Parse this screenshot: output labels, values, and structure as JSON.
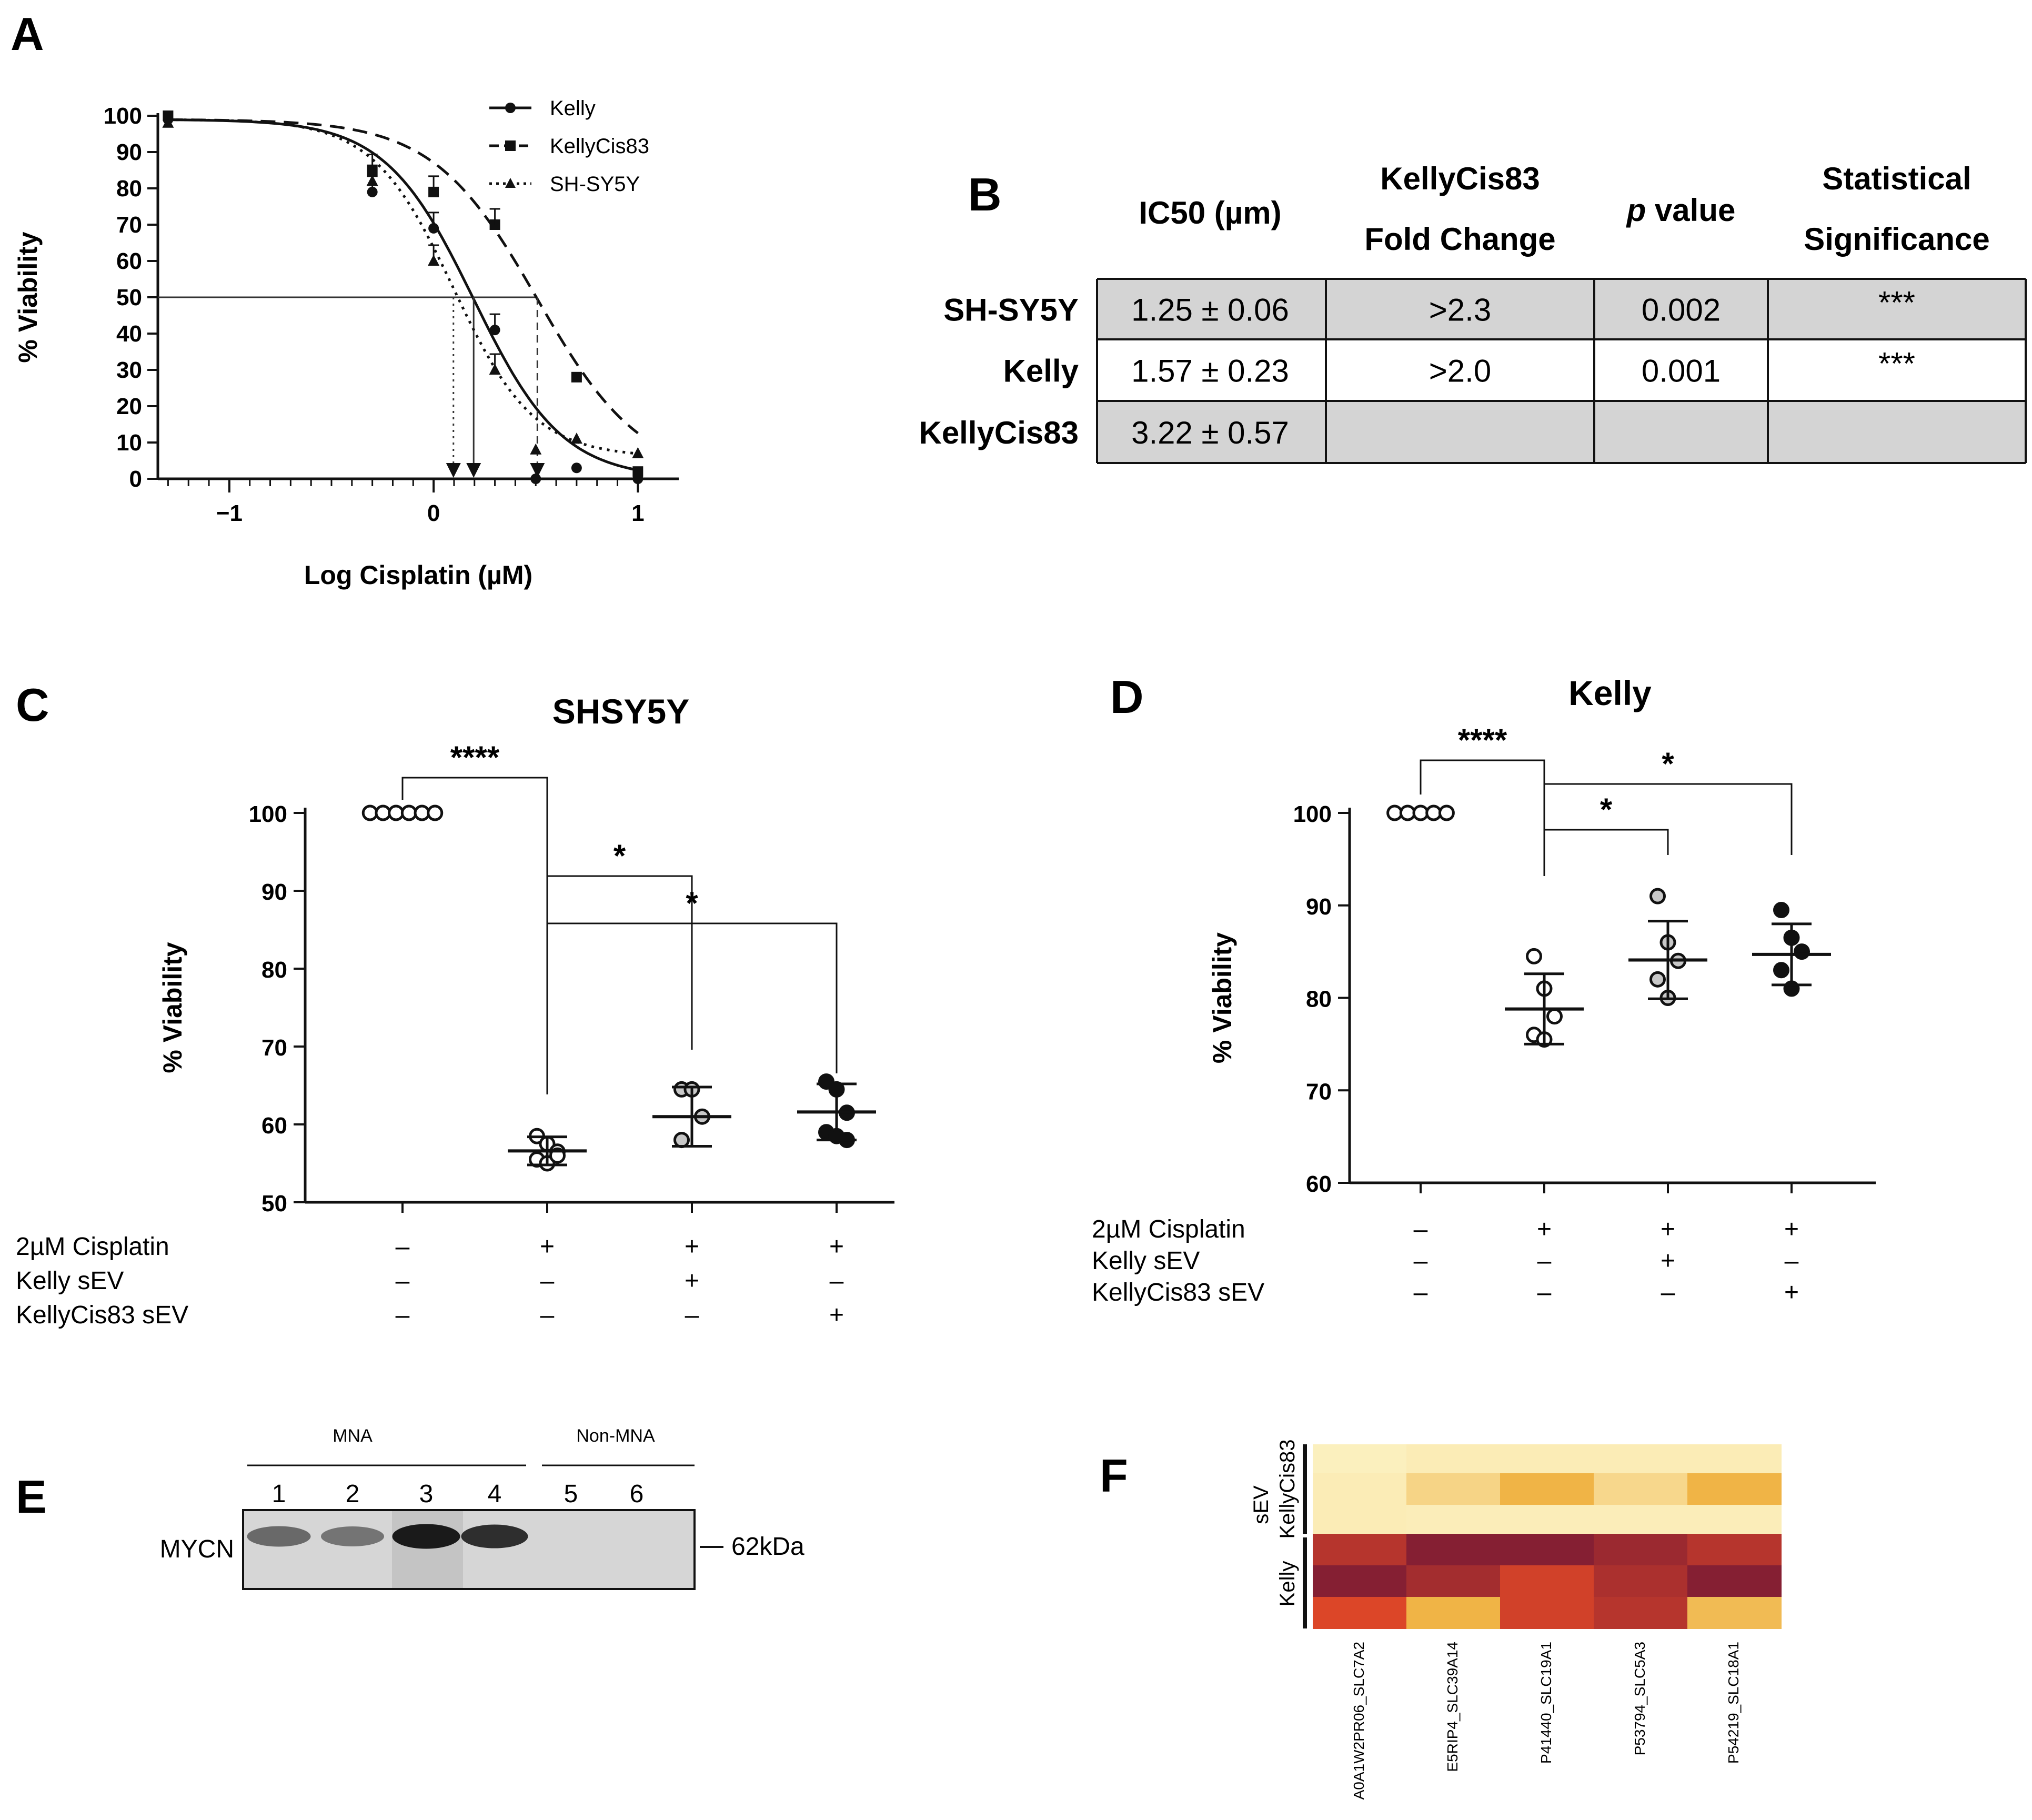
{
  "panels": {
    "a": {
      "letter": "A"
    },
    "b": {
      "letter": "B"
    },
    "c": {
      "letter": "C"
    },
    "d": {
      "letter": "D"
    },
    "e": {
      "letter": "E"
    },
    "f": {
      "letter": "F"
    }
  },
  "chart_data": [
    {
      "id": "A",
      "type": "line",
      "title": "",
      "xlabel": "Log Cisplatin (µM)",
      "ylabel": "% Viability",
      "xlim": [
        -1.35,
        1.2
      ],
      "ylim": [
        0,
        100
      ],
      "x_ticks": [
        "−1",
        "0",
        "1"
      ],
      "y_ticks": [
        "0",
        "10",
        "20",
        "30",
        "40",
        "50",
        "60",
        "70",
        "80",
        "90",
        "100"
      ],
      "reference_line_y": 50,
      "series": [
        {
          "name": "Kelly",
          "marker": "circle",
          "line": "solid",
          "x": [
            -1.3,
            -0.3,
            0.0,
            0.3,
            0.5,
            0.7,
            1.0
          ],
          "y": [
            99,
            79,
            69,
            41,
            0,
            3,
            0
          ],
          "logIC50": 0.196
        },
        {
          "name": "KellyCis83",
          "marker": "square",
          "line": "dashed",
          "x": [
            -1.3,
            -0.3,
            0.0,
            0.3,
            0.7,
            1.0
          ],
          "y": [
            100,
            85,
            79,
            70,
            28,
            2
          ],
          "logIC50": 0.508
        },
        {
          "name": "SH-SY5Y",
          "marker": "triangle",
          "line": "dotted",
          "x": [
            -1.3,
            -0.3,
            0.0,
            0.3,
            0.5,
            0.7,
            1.0
          ],
          "y": [
            98,
            82,
            60,
            30,
            8,
            11,
            7
          ],
          "logIC50": 0.097
        }
      ]
    },
    {
      "id": "B",
      "type": "table",
      "headers": [
        "IC50 (µm)",
        "KellyCis83",
        "Fold Change",
        "p",
        " value",
        "Statistical",
        "Significance"
      ],
      "rows": [
        {
          "label": "SH-SY5Y",
          "cells": [
            "1.25 ± 0.06",
            ">2.3",
            "0.002",
            "***"
          ],
          "shaded": true
        },
        {
          "label": "Kelly",
          "cells": [
            "1.57 ± 0.23",
            ">2.0",
            "0.001",
            "***"
          ],
          "shaded": false
        },
        {
          "label": "KellyCis83",
          "cells": [
            "3.22 ± 0.57",
            "",
            "",
            ""
          ],
          "shaded": true
        }
      ]
    },
    {
      "id": "C",
      "type": "scatter",
      "title": "SHSY5Y",
      "ylabel": "% Viability",
      "ylim": [
        50,
        100
      ],
      "y_ticks": [
        "50",
        "60",
        "70",
        "80",
        "90",
        "100"
      ],
      "groups": [
        {
          "fill": "open",
          "points": [
            100,
            100,
            100,
            100,
            100,
            100
          ],
          "mean": 100,
          "sd": 0
        },
        {
          "fill": "open",
          "points": [
            58.5,
            57.5,
            56.5,
            55.5,
            55,
            56
          ],
          "mean": 56.6,
          "sd": 1.8
        },
        {
          "fill": "grey",
          "points": [
            64.5,
            64.5,
            61,
            58
          ],
          "mean": 61,
          "sd": 3.8
        },
        {
          "fill": "black",
          "points": [
            65.5,
            64.5,
            61.5,
            59,
            58.5,
            58
          ],
          "mean": 61.6,
          "sd": 3.6
        }
      ],
      "significance": [
        {
          "from": 0,
          "to": 1,
          "label": "****"
        },
        {
          "from": 1,
          "to": 2,
          "label": "*"
        },
        {
          "from": 1,
          "to": 3,
          "label": "*"
        }
      ],
      "conditions": [
        {
          "label": "2µM Cisplatin",
          "values": [
            "–",
            "+",
            "+",
            "+"
          ]
        },
        {
          "label": "Kelly sEV",
          "values": [
            "–",
            "–",
            "+",
            "–"
          ]
        },
        {
          "label": "KellyCis83 sEV",
          "values": [
            "–",
            "–",
            "–",
            "+"
          ]
        }
      ]
    },
    {
      "id": "D",
      "type": "scatter",
      "title": "Kelly",
      "ylabel": "% Viability",
      "ylim": [
        60,
        100
      ],
      "y_ticks": [
        "60",
        "70",
        "80",
        "90",
        "100"
      ],
      "groups": [
        {
          "fill": "open",
          "points": [
            100,
            100,
            100,
            100,
            100
          ],
          "mean": 100,
          "sd": 0
        },
        {
          "fill": "open",
          "points": [
            84.5,
            81,
            78,
            76,
            75.5
          ],
          "mean": 78.8,
          "sd": 3.8
        },
        {
          "fill": "grey",
          "points": [
            91,
            86,
            84,
            82,
            80
          ],
          "mean": 84.1,
          "sd": 4.2
        },
        {
          "fill": "black",
          "points": [
            89.5,
            86.5,
            85,
            83,
            81
          ],
          "mean": 84.7,
          "sd": 3.3
        }
      ],
      "significance": [
        {
          "from": 0,
          "to": 1,
          "label": "****"
        },
        {
          "from": 1,
          "to": 2,
          "label": "*"
        },
        {
          "from": 1,
          "to": 3,
          "label": "*"
        }
      ],
      "conditions": [
        {
          "label": "2µM Cisplatin",
          "values": [
            "–",
            "+",
            "+",
            "+"
          ]
        },
        {
          "label": "Kelly sEV",
          "values": [
            "–",
            "–",
            "+",
            "–"
          ]
        },
        {
          "label": "KellyCis83 sEV",
          "values": [
            "–",
            "–",
            "–",
            "+"
          ]
        }
      ]
    },
    {
      "id": "E",
      "type": "table",
      "protein_label": "MYCN",
      "size_marker": "62kDa",
      "group_labels": [
        "MNA",
        "Non-MNA"
      ],
      "lanes": [
        {
          "label": "1",
          "intensity": 0.55
        },
        {
          "label": "2",
          "intensity": 0.5
        },
        {
          "label": "3",
          "intensity": 0.95
        },
        {
          "label": "4",
          "intensity": 0.85
        },
        {
          "label": "5",
          "intensity": 0.0
        },
        {
          "label": "6",
          "intensity": 0.0
        }
      ]
    },
    {
      "id": "F",
      "type": "heatmap",
      "columns": [
        "A0A1W2PR06_SLC7A2",
        "E5RIP4_SLC39A14",
        "P41440_SLC19A1",
        "P53794_SLC5A3",
        "P54219_SLC18A1"
      ],
      "row_groups": [
        {
          "label": "KellyCis83",
          "rows": 3
        },
        {
          "label": "Kelly",
          "rows": 3
        }
      ],
      "side_label": "sEV",
      "values": [
        [
          0.02,
          0.05,
          0.05,
          0.05,
          0.05
        ],
        [
          0.05,
          0.22,
          0.45,
          0.2,
          0.45
        ],
        [
          0.05,
          0.04,
          0.04,
          0.04,
          0.04
        ],
        [
          0.85,
          0.98,
          0.98,
          0.92,
          0.85
        ],
        [
          0.98,
          0.9,
          0.78,
          0.88,
          0.98
        ],
        [
          0.75,
          0.45,
          0.78,
          0.85,
          0.4
        ]
      ]
    }
  ]
}
